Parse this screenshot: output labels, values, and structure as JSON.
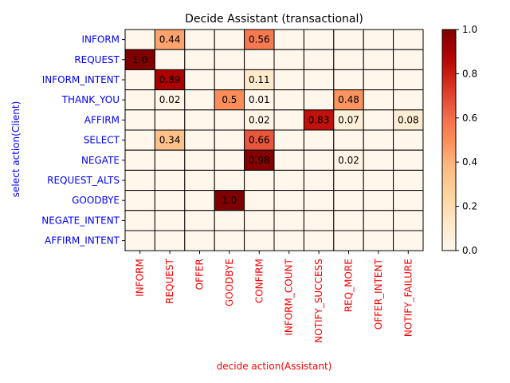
{
  "chart_data": {
    "type": "heatmap",
    "title": "Decide Assistant (transactional)",
    "xlabel": "decide action(Assistant)",
    "ylabel": "select action(Client)",
    "x_categories": [
      "INFORM",
      "REQUEST",
      "OFFER",
      "GOODBYE",
      "CONFIRM",
      "INFORM_COUNT",
      "NOTIFY_SUCCESS",
      "REQ_MORE",
      "OFFER_INTENT",
      "NOTIFY_FAILURE"
    ],
    "y_categories": [
      "INFORM",
      "REQUEST",
      "INFORM_INTENT",
      "THANK_YOU",
      "AFFIRM",
      "SELECT",
      "NEGATE",
      "REQUEST_ALTS",
      "GOODBYE",
      "NEGATE_INTENT",
      "AFFIRM_INTENT"
    ],
    "values": [
      [
        0,
        0.44,
        0,
        0,
        0.56,
        0,
        0,
        0,
        0,
        0
      ],
      [
        1.0,
        0,
        0,
        0,
        0,
        0,
        0,
        0,
        0,
        0
      ],
      [
        0,
        0.89,
        0,
        0,
        0.11,
        0,
        0,
        0,
        0,
        0
      ],
      [
        0,
        0.02,
        0,
        0.5,
        0.01,
        0,
        0,
        0.48,
        0,
        0
      ],
      [
        0,
        0,
        0,
        0,
        0.02,
        0,
        0.83,
        0.07,
        0,
        0.08
      ],
      [
        0,
        0.34,
        0,
        0,
        0.66,
        0,
        0,
        0,
        0,
        0
      ],
      [
        0,
        0,
        0,
        0,
        0.98,
        0,
        0,
        0.02,
        0,
        0
      ],
      [
        0,
        0,
        0,
        0,
        0,
        0,
        0,
        0,
        0,
        0
      ],
      [
        0,
        0,
        0,
        1.0,
        0,
        0,
        0,
        0,
        0,
        0
      ],
      [
        0,
        0,
        0,
        0,
        0,
        0,
        0,
        0,
        0,
        0
      ],
      [
        0,
        0,
        0,
        0,
        0,
        0,
        0,
        0,
        0,
        0
      ]
    ],
    "labels": [
      [
        "",
        "0.44",
        "",
        "",
        "0.56",
        "",
        "",
        "",
        "",
        ""
      ],
      [
        "1.0",
        "",
        "",
        "",
        "",
        "",
        "",
        "",
        "",
        ""
      ],
      [
        "",
        "0.89",
        "",
        "",
        "0.11",
        "",
        "",
        "",
        "",
        ""
      ],
      [
        "",
        "0.02",
        "",
        "0.5",
        "0.01",
        "",
        "",
        "0.48",
        "",
        ""
      ],
      [
        "",
        "",
        "",
        "",
        "0.02",
        "",
        "0.83",
        "0.07",
        "",
        "0.08"
      ],
      [
        "",
        "0.34",
        "",
        "",
        "0.66",
        "",
        "",
        "",
        "",
        ""
      ],
      [
        "",
        "",
        "",
        "",
        "0.98",
        "",
        "",
        "0.02",
        "",
        ""
      ],
      [
        "",
        "",
        "",
        "",
        "",
        "",
        "",
        "",
        "",
        ""
      ],
      [
        "",
        "",
        "",
        "1.0",
        "",
        "",
        "",
        "",
        "",
        ""
      ],
      [
        "",
        "",
        "",
        "",
        "",
        "",
        "",
        "",
        "",
        ""
      ],
      [
        "",
        "",
        "",
        "",
        "",
        "",
        "",
        "",
        "",
        ""
      ]
    ],
    "colormap": "OrRd",
    "vmin": 0.0,
    "vmax": 1.0,
    "colorbar_ticks": [
      "0.0",
      "0.2",
      "0.4",
      "0.6",
      "0.8",
      "1.0"
    ],
    "colors": {
      "y_tick_labels": "#0000ff",
      "y_axis_label": "#0000ff",
      "x_tick_labels": "#ff0000",
      "x_axis_label": "#ff0000",
      "cell_border": "#000000"
    }
  }
}
